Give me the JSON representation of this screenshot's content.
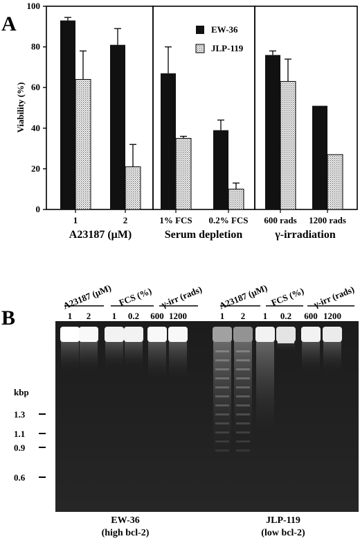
{
  "panel_a": {
    "letter": "A",
    "ylabel": "Viability (%)",
    "legend": [
      {
        "name": "EW-36",
        "fill": "#111111"
      },
      {
        "name": "JLP-119",
        "fill": "dotted"
      }
    ],
    "group_labels": [
      "A23187 (μM)",
      "Serum depletion",
      "γ-irradiation"
    ]
  },
  "chart_data": {
    "type": "bar",
    "categories": [
      "1",
      "2",
      "1% FCS",
      "0.2% FCS",
      "600 rads",
      "1200 rads"
    ],
    "groups": [
      {
        "label": "A23187 (μM)",
        "categories": [
          "1",
          "2"
        ]
      },
      {
        "label": "Serum depletion",
        "categories": [
          "1% FCS",
          "0.2% FCS"
        ]
      },
      {
        "label": "γ-irradiation",
        "categories": [
          "600 rads",
          "1200 rads"
        ]
      }
    ],
    "series": [
      {
        "name": "EW-36",
        "values": [
          93,
          81,
          67,
          39,
          76,
          51
        ],
        "errors": [
          1.5,
          8,
          13,
          5,
          2,
          0
        ],
        "color": "#111111"
      },
      {
        "name": "JLP-119",
        "values": [
          64,
          21,
          35,
          10,
          63,
          27
        ],
        "errors": [
          14,
          11,
          1,
          3,
          11,
          0
        ],
        "color": "#e6e6e6"
      }
    ],
    "ylabel": "Viability (%)",
    "xlabel": "",
    "ylim": [
      0,
      100
    ],
    "yticks": [
      0,
      20,
      40,
      60,
      80,
      100
    ],
    "grid": false,
    "legend_position": "top-right of middle panel"
  },
  "panel_b": {
    "letter": "B",
    "treatment_headers": [
      "A23187 (μM)",
      "FCS (%)",
      "γ-irr (rads)",
      "A23187 (μM)",
      "FCS (%)",
      "γ-irr (rads)"
    ],
    "lane_labels": [
      "1",
      "2",
      "1",
      "0.2",
      "600",
      "1200",
      "1",
      "2",
      "1",
      "0.2",
      "600",
      "1200"
    ],
    "kbp_label": "kbp",
    "markers": [
      "1.3",
      "1.1",
      "0.9",
      "0.6"
    ],
    "cell_lines": [
      {
        "name": "EW-36",
        "note": "(high bcl-2)"
      },
      {
        "name": "JLP-119",
        "note": "(low bcl-2)"
      }
    ]
  }
}
